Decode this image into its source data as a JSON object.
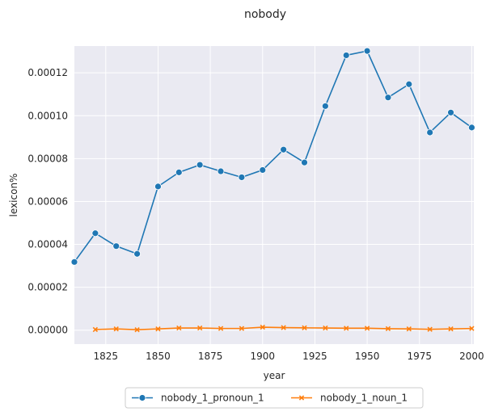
{
  "chart_data": {
    "type": "line",
    "title": "nobody",
    "xlabel": "year",
    "ylabel": "lexicon%",
    "xlim": [
      1810,
      2001
    ],
    "ylim": [
      -6.5e-06,
      0.0001325
    ],
    "xticks": [
      1825,
      1850,
      1875,
      1900,
      1925,
      1950,
      1975,
      2000
    ],
    "yticks": [
      0.0,
      2e-05,
      4e-05,
      6e-05,
      8e-05,
      0.0001,
      0.00012
    ],
    "ytick_labels": [
      "0.00000",
      "0.00002",
      "0.00004",
      "0.00006",
      "0.00008",
      "0.00010",
      "0.00012"
    ],
    "grid": true,
    "legend_position": "bottom-center",
    "series": [
      {
        "name": "nobody_1_pronoun_1",
        "color": "#1f77b4",
        "marker": "circle",
        "x": [
          1810,
          1820,
          1830,
          1840,
          1850,
          1860,
          1870,
          1880,
          1890,
          1900,
          1910,
          1920,
          1930,
          1940,
          1950,
          1960,
          1970,
          1980,
          1990,
          2000
        ],
        "values": [
          3.18e-05,
          4.52e-05,
          3.92e-05,
          3.56e-05,
          6.7e-05,
          7.36e-05,
          7.71e-05,
          7.41e-05,
          7.13e-05,
          7.47e-05,
          8.42e-05,
          7.82e-05,
          0.0001045,
          0.0001282,
          0.0001302,
          0.0001085,
          0.0001147,
          9.22e-05,
          0.0001015,
          9.45e-05
        ]
      },
      {
        "name": "nobody_1_noun_1",
        "color": "#ff7f0e",
        "marker": "x",
        "x": [
          1820,
          1830,
          1840,
          1850,
          1860,
          1870,
          1880,
          1890,
          1900,
          1910,
          1920,
          1930,
          1940,
          1950,
          1960,
          1970,
          1980,
          1990,
          2000
        ],
        "values": [
          3e-07,
          6e-07,
          2e-07,
          6e-07,
          1e-06,
          1e-06,
          8e-07,
          8e-07,
          1.4e-06,
          1.2e-06,
          1.1e-06,
          1e-06,
          9e-07,
          9e-07,
          7e-07,
          6e-07,
          4e-07,
          6e-07,
          8e-07
        ]
      }
    ]
  }
}
